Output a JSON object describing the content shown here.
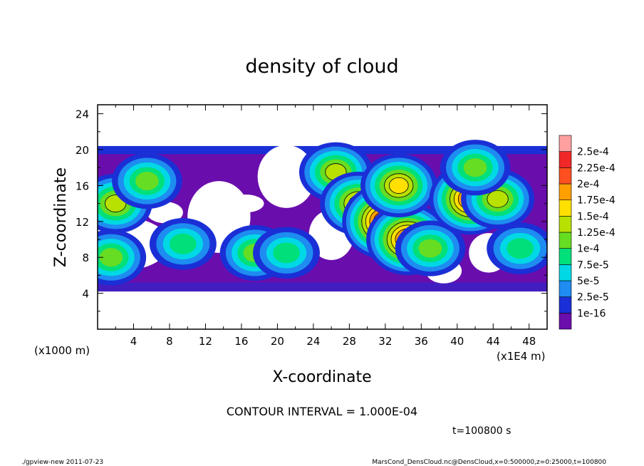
{
  "chart_data": {
    "type": "heatmap",
    "title": "density of cloud",
    "xlabel": "X-coordinate",
    "ylabel": "Z-coordinate",
    "x_unit_left": "(x1000 m)",
    "x_unit_right": "(x1E4 m)",
    "xlim": [
      0,
      50
    ],
    "ylim": [
      0,
      25
    ],
    "xticks": [
      4,
      8,
      12,
      16,
      20,
      24,
      28,
      32,
      36,
      40,
      44,
      48
    ],
    "yticks": [
      4,
      8,
      12,
      16,
      20,
      24
    ],
    "contour_interval_text": "CONTOUR INTERVAL = 1.000E-04",
    "time_text": "t=100800 s",
    "footer_left": "./gpview-new  2011-07-23",
    "footer_right": "MarsCond_DensCloud.nc@DensCloud,x=0:500000,z=0:25000,t=100800",
    "colorbar": {
      "labels": [
        "2.5e-4",
        "2.25e-4",
        "2e-4",
        "1.75e-4",
        "1.5e-4",
        "1.25e-4",
        "1e-4",
        "7.5e-5",
        "5e-5",
        "2.5e-5",
        "1e-16"
      ],
      "colors": [
        "#6a0dad",
        "#1a2fd6",
        "#1e8cf0",
        "#00d8e6",
        "#00e07a",
        "#66dd22",
        "#b8e000",
        "#ffe000",
        "#ffa000",
        "#ff5020",
        "#f02828",
        "#ffa0a0"
      ]
    },
    "clouds": [
      {
        "x": 2.0,
        "z": 14.0,
        "level": 6
      },
      {
        "x": 5.5,
        "z": 16.5,
        "level": 5
      },
      {
        "x": 1.5,
        "z": 8.0,
        "level": 5
      },
      {
        "x": 9.5,
        "z": 9.5,
        "level": 4
      },
      {
        "x": 17.5,
        "z": 8.5,
        "level": 5
      },
      {
        "x": 21.0,
        "z": 8.5,
        "level": 4
      },
      {
        "x": 26.5,
        "z": 17.5,
        "level": 6
      },
      {
        "x": 29.0,
        "z": 14.0,
        "level": 7
      },
      {
        "x": 32.0,
        "z": 12.0,
        "level": 10
      },
      {
        "x": 34.5,
        "z": 10.0,
        "level": 9
      },
      {
        "x": 33.5,
        "z": 16.0,
        "level": 7
      },
      {
        "x": 37.0,
        "z": 9.0,
        "level": 5
      },
      {
        "x": 41.5,
        "z": 14.5,
        "level": 9
      },
      {
        "x": 44.5,
        "z": 14.5,
        "level": 6
      },
      {
        "x": 42.0,
        "z": 18.0,
        "level": 5
      },
      {
        "x": 47.0,
        "z": 9.0,
        "level": 4
      }
    ]
  }
}
